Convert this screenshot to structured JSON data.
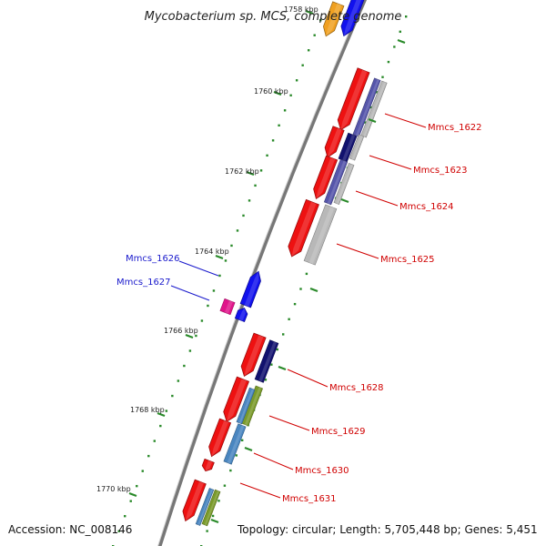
{
  "title": "Mycobacterium sp. MCS, complete genome",
  "footer": {
    "accession": "Accession: NC_008146",
    "topology": "Topology: circular; Length: 5,705,448 bp; Genes: 5,451"
  },
  "ticks": [
    "1758 kbp",
    "1760 kbp",
    "1762 kbp",
    "1764 kbp",
    "1766 kbp",
    "1768 kbp",
    "1770 kbp"
  ],
  "gene_labels": {
    "reverse": [
      "Mmcs_1622",
      "Mmcs_1623",
      "Mmcs_1624",
      "Mmcs_1625",
      "Mmcs_1628",
      "Mmcs_1629",
      "Mmcs_1630",
      "Mmcs_1631"
    ],
    "forward": [
      "Mmcs_1626",
      "Mmcs_1627"
    ]
  },
  "colors": {
    "backbone": "#777777",
    "gene_red": "#ee1111",
    "gene_blue": "#1111ee",
    "navy": "#11116e",
    "slate": "#5555aa",
    "gray": "#b8b8b8",
    "olive": "#7a9a2a",
    "steel": "#4a86c0",
    "orange": "#f0a020",
    "magenta": "#e0148a",
    "tick_green": "#2a8a2a",
    "label_red": "#d00000",
    "label_blue": "#1a1acc"
  }
}
